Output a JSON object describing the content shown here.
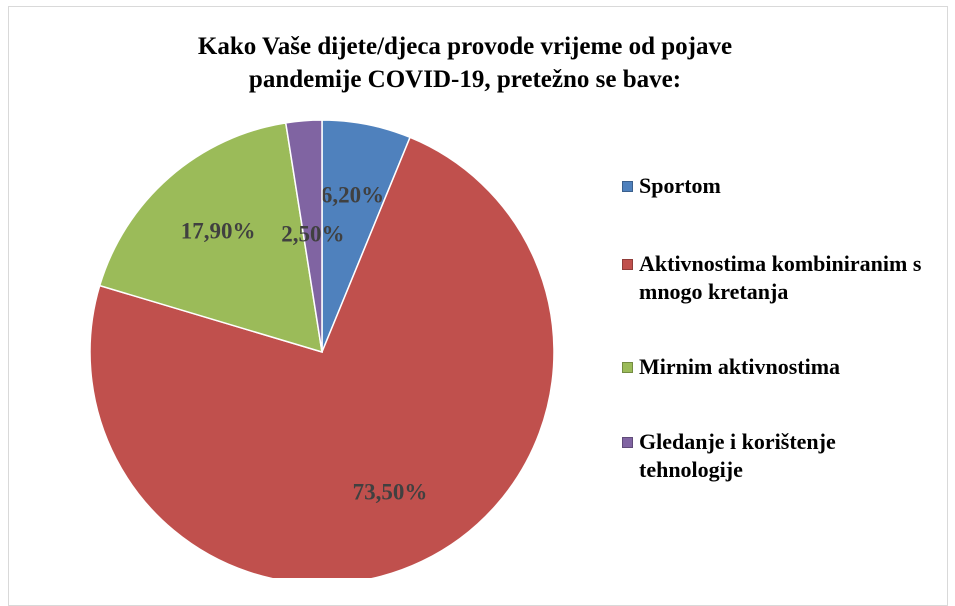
{
  "chart_data": {
    "type": "pie",
    "title": "Kako Vaše dijete/djeca provode vrijeme od pojave pandemije COVID-19, pretežno se bave:",
    "categories": [
      "Sportom",
      "Aktivnostima kombiniranim s mnogo kretanja",
      "Mirnim aktivnostima",
      "Gledanje i korištenje tehnologije"
    ],
    "values": [
      6.2,
      73.5,
      17.9,
      2.5
    ],
    "value_labels": [
      "6,20%",
      "73,50%",
      "17,90%",
      "2,50%"
    ],
    "colors": [
      "#4f81bd",
      "#c0504d",
      "#9bbb59",
      "#8064a2"
    ],
    "legend": "right"
  }
}
